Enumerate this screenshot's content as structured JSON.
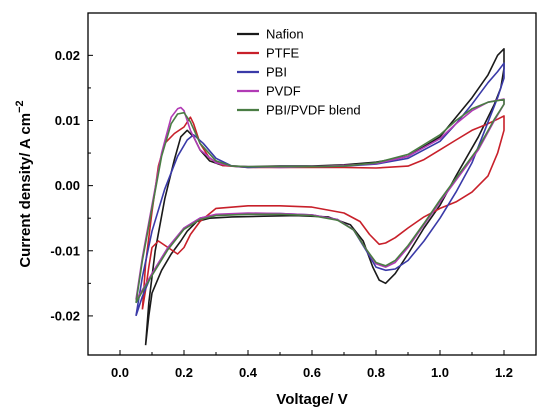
{
  "chart_data": {
    "type": "line",
    "title": "",
    "xlabel": "Voltage/ V",
    "ylabel_main": "Current density/ A cm",
    "ylabel_sup": "−2",
    "xlim": [
      -0.1,
      1.3
    ],
    "ylim": [
      -0.026,
      0.0265
    ],
    "x_ticks": [
      0.0,
      0.2,
      0.4,
      0.6,
      0.8,
      1.0,
      1.2
    ],
    "x_tick_labels": [
      "0.0",
      "0.2",
      "0.4",
      "0.6",
      "0.8",
      "1.0",
      "1.2"
    ],
    "y_ticks": [
      -0.02,
      -0.01,
      0.0,
      0.01,
      0.02
    ],
    "y_tick_labels": [
      "-0.02",
      "-0.01",
      "0.00",
      "0.01",
      "0.02"
    ],
    "grid": false,
    "legend_position": "top-center",
    "series": [
      {
        "name": "Nafion",
        "color": "#1a1a1a",
        "x": [
          0.08,
          0.09,
          0.11,
          0.14,
          0.17,
          0.19,
          0.21,
          0.23,
          0.25,
          0.28,
          0.32,
          0.4,
          0.5,
          0.6,
          0.7,
          0.8,
          0.9,
          1.0,
          1.05,
          1.1,
          1.15,
          1.18,
          1.19,
          1.2,
          1.2,
          1.19,
          1.17,
          1.12,
          1.05,
          1.0,
          0.95,
          0.9,
          0.86,
          0.83,
          0.81,
          0.79,
          0.76,
          0.72,
          0.65,
          0.55,
          0.45,
          0.35,
          0.28,
          0.24,
          0.21,
          0.19,
          0.16,
          0.13,
          0.1,
          0.09,
          0.08
        ],
        "y": [
          -0.0245,
          -0.018,
          -0.01,
          -0.002,
          0.004,
          0.0075,
          0.0085,
          0.0075,
          0.0055,
          0.0038,
          0.0031,
          0.0029,
          0.003,
          0.003,
          0.0032,
          0.0036,
          0.0045,
          0.0075,
          0.0105,
          0.0135,
          0.017,
          0.02,
          0.0205,
          0.021,
          0.018,
          0.015,
          0.0125,
          0.0075,
          0.0015,
          -0.003,
          -0.0065,
          -0.0105,
          -0.0135,
          -0.015,
          -0.0145,
          -0.0125,
          -0.0085,
          -0.006,
          -0.0048,
          -0.0046,
          -0.0047,
          -0.0048,
          -0.005,
          -0.0055,
          -0.007,
          -0.0085,
          -0.0105,
          -0.013,
          -0.0165,
          -0.02,
          -0.0245
        ]
      },
      {
        "name": "PTFE",
        "color": "#c8202a",
        "x": [
          0.07,
          0.08,
          0.1,
          0.12,
          0.14,
          0.17,
          0.2,
          0.22,
          0.23,
          0.25,
          0.28,
          0.32,
          0.4,
          0.5,
          0.6,
          0.7,
          0.8,
          0.9,
          0.95,
          1.0,
          1.05,
          1.1,
          1.15,
          1.18,
          1.2,
          1.2,
          1.18,
          1.15,
          1.1,
          1.05,
          1.0,
          0.95,
          0.9,
          0.86,
          0.83,
          0.81,
          0.78,
          0.75,
          0.7,
          0.6,
          0.5,
          0.4,
          0.3,
          0.25,
          0.22,
          0.2,
          0.18,
          0.15,
          0.12,
          0.1,
          0.09,
          0.08,
          0.07
        ],
        "y": [
          -0.019,
          -0.012,
          -0.004,
          0.003,
          0.0065,
          0.008,
          0.009,
          0.0105,
          0.0095,
          0.0065,
          0.0042,
          0.0031,
          0.0028,
          0.0028,
          0.0028,
          0.0028,
          0.0027,
          0.003,
          0.004,
          0.0055,
          0.007,
          0.0085,
          0.0095,
          0.0102,
          0.0107,
          0.0085,
          0.005,
          0.0015,
          -0.001,
          -0.0025,
          -0.0035,
          -0.0048,
          -0.0065,
          -0.008,
          -0.0088,
          -0.009,
          -0.0075,
          -0.0055,
          -0.0042,
          -0.0033,
          -0.0031,
          -0.0031,
          -0.0035,
          -0.0055,
          -0.0075,
          -0.0095,
          -0.0105,
          -0.0095,
          -0.0085,
          -0.0095,
          -0.0125,
          -0.016,
          -0.019
        ]
      },
      {
        "name": "PBI",
        "color": "#3a3aa8",
        "x": [
          0.05,
          0.07,
          0.1,
          0.14,
          0.18,
          0.21,
          0.23,
          0.26,
          0.3,
          0.35,
          0.4,
          0.5,
          0.6,
          0.7,
          0.8,
          0.9,
          1.0,
          1.05,
          1.1,
          1.15,
          1.18,
          1.2,
          1.2,
          1.18,
          1.14,
          1.1,
          1.05,
          1.0,
          0.95,
          0.9,
          0.86,
          0.83,
          0.8,
          0.77,
          0.73,
          0.68,
          0.6,
          0.5,
          0.4,
          0.3,
          0.25,
          0.2,
          0.15,
          0.1,
          0.07,
          0.05
        ],
        "y": [
          -0.02,
          -0.014,
          -0.007,
          -0.0005,
          0.0045,
          0.007,
          0.0078,
          0.0065,
          0.0042,
          0.003,
          0.0028,
          0.0029,
          0.0029,
          0.003,
          0.0033,
          0.0042,
          0.0068,
          0.0095,
          0.0125,
          0.0158,
          0.0175,
          0.0188,
          0.0165,
          0.0135,
          0.0085,
          0.0035,
          -0.001,
          -0.005,
          -0.0085,
          -0.0115,
          -0.0128,
          -0.013,
          -0.0125,
          -0.01,
          -0.0068,
          -0.0052,
          -0.0045,
          -0.0043,
          -0.0043,
          -0.0045,
          -0.005,
          -0.0065,
          -0.0095,
          -0.0135,
          -0.017,
          -0.02
        ]
      },
      {
        "name": "PVDF",
        "color": "#b13bb5",
        "x": [
          0.05,
          0.07,
          0.1,
          0.13,
          0.16,
          0.18,
          0.19,
          0.2,
          0.22,
          0.25,
          0.3,
          0.35,
          0.4,
          0.5,
          0.6,
          0.7,
          0.8,
          0.9,
          1.0,
          1.05,
          1.1,
          1.15,
          1.2,
          1.2,
          1.17,
          1.12,
          1.06,
          1.0,
          0.95,
          0.9,
          0.86,
          0.83,
          0.8,
          0.77,
          0.73,
          0.68,
          0.6,
          0.5,
          0.4,
          0.3,
          0.25,
          0.2,
          0.15,
          0.1,
          0.07,
          0.05
        ],
        "y": [
          -0.0175,
          -0.011,
          -0.003,
          0.005,
          0.0105,
          0.0118,
          0.012,
          0.0115,
          0.0085,
          0.0055,
          0.0035,
          0.003,
          0.0029,
          0.0028,
          0.0029,
          0.0031,
          0.0034,
          0.0045,
          0.0072,
          0.0095,
          0.0115,
          0.0128,
          0.0133,
          0.0125,
          0.01,
          0.0055,
          0.0015,
          -0.0025,
          -0.006,
          -0.0095,
          -0.0118,
          -0.0125,
          -0.012,
          -0.0098,
          -0.0068,
          -0.0052,
          -0.0045,
          -0.0043,
          -0.0042,
          -0.0044,
          -0.005,
          -0.0065,
          -0.0095,
          -0.0135,
          -0.016,
          -0.0175
        ]
      },
      {
        "name": "PBI/PVDF blend",
        "color": "#4a7d44",
        "x": [
          0.05,
          0.07,
          0.1,
          0.13,
          0.16,
          0.18,
          0.2,
          0.22,
          0.25,
          0.3,
          0.35,
          0.4,
          0.5,
          0.6,
          0.7,
          0.8,
          0.9,
          1.0,
          1.05,
          1.1,
          1.15,
          1.2,
          1.2,
          1.17,
          1.12,
          1.06,
          1.0,
          0.95,
          0.9,
          0.86,
          0.83,
          0.8,
          0.77,
          0.73,
          0.68,
          0.6,
          0.5,
          0.4,
          0.3,
          0.25,
          0.2,
          0.15,
          0.1,
          0.07,
          0.05
        ],
        "y": [
          -0.018,
          -0.0115,
          -0.0035,
          0.0045,
          0.0095,
          0.011,
          0.0112,
          0.0098,
          0.0065,
          0.0038,
          0.003,
          0.0029,
          0.0029,
          0.0029,
          0.003,
          0.0035,
          0.0048,
          0.0078,
          0.01,
          0.0118,
          0.0128,
          0.0132,
          0.0125,
          0.0102,
          0.0058,
          0.0018,
          -0.0022,
          -0.0058,
          -0.0092,
          -0.0115,
          -0.0123,
          -0.0118,
          -0.0098,
          -0.0068,
          -0.0053,
          -0.0046,
          -0.0044,
          -0.0044,
          -0.0046,
          -0.0052,
          -0.0067,
          -0.0098,
          -0.0138,
          -0.0162,
          -0.018
        ]
      }
    ]
  }
}
